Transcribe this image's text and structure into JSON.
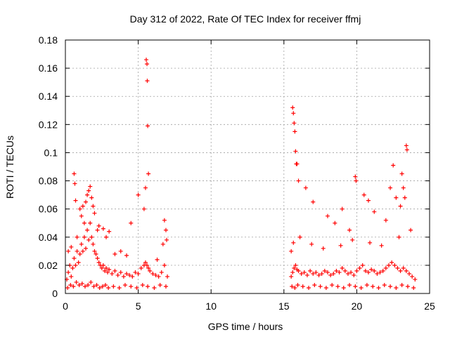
{
  "chart_data": {
    "type": "scatter",
    "title": "Day 312 of 2022, Rate Of TEC Index for receiver ffmj",
    "xlabel": "GPS time / hours",
    "ylabel": "ROTI / TECUs",
    "xlim": [
      0,
      25
    ],
    "ylim": [
      0,
      0.18
    ],
    "xticks": [
      0,
      5,
      10,
      15,
      20,
      25
    ],
    "yticks": [
      0,
      0.02,
      0.04,
      0.06,
      0.08,
      0.1,
      0.12,
      0.14,
      0.16,
      0.18
    ],
    "xtick_labels": [
      "0",
      "5",
      "10",
      "15",
      "20",
      "25"
    ],
    "ytick_labels": [
      "0",
      "0.02",
      "0.04",
      "0.06",
      "0.08",
      "0.1",
      "0.12",
      "0.14",
      "0.16",
      "0.18"
    ],
    "grid": true,
    "marker": "+",
    "color": "#ff0000",
    "series": [
      {
        "x": [
          0.1,
          0.2,
          0.3,
          0.4,
          0.5,
          0.6,
          0.7,
          0.8,
          0.9,
          1.0,
          1.1,
          1.2,
          1.3,
          1.4,
          1.5,
          1.6,
          1.7,
          1.8,
          1.9,
          2.0,
          2.1,
          2.2,
          2.3,
          2.4,
          2.5,
          2.6,
          2.7,
          2.8,
          2.9,
          3.0,
          3.2,
          3.4,
          3.6,
          3.8,
          4.0,
          4.2,
          4.4,
          4.6,
          4.8,
          5.0,
          5.2,
          5.4,
          5.5,
          5.6,
          5.7,
          5.8,
          6.0,
          6.2,
          6.4,
          6.6,
          6.8,
          7.0,
          0.15,
          0.35,
          0.55,
          0.75,
          0.95,
          1.15,
          1.35,
          1.55,
          1.75,
          1.95,
          2.15,
          2.35,
          2.55,
          2.75,
          2.95,
          3.3,
          3.7,
          4.1,
          4.5,
          4.9,
          5.3,
          5.65,
          6.1,
          6.5,
          6.9,
          0.6,
          0.65,
          0.7,
          1.0,
          1.2,
          1.4,
          1.5,
          1.6,
          1.7,
          1.8,
          1.9,
          2.0,
          2.3,
          2.6,
          3.0,
          3.8,
          4.5,
          5.5,
          5.55,
          5.6,
          5.62,
          5.65,
          5.7,
          6.8,
          6.9,
          0.2,
          0.4,
          0.8,
          1.1,
          1.3,
          2.2,
          2.8,
          3.4,
          4.2,
          5.0,
          5.4,
          6.3,
          6.7,
          6.95,
          15.5,
          15.6,
          15.7,
          15.8,
          15.9,
          16.0,
          16.2,
          16.4,
          16.6,
          16.8,
          17.0,
          17.2,
          17.4,
          17.6,
          17.8,
          18.0,
          18.2,
          18.4,
          18.6,
          18.8,
          19.0,
          19.2,
          19.4,
          19.6,
          19.8,
          20.0,
          20.2,
          20.4,
          20.6,
          20.8,
          21.0,
          21.2,
          21.4,
          21.6,
          21.8,
          22.0,
          22.2,
          22.4,
          22.6,
          22.8,
          23.0,
          23.2,
          23.4,
          23.6,
          23.8,
          24.0,
          15.55,
          15.75,
          15.95,
          16.3,
          16.7,
          17.1,
          17.5,
          17.9,
          18.3,
          18.7,
          19.1,
          19.5,
          19.9,
          20.3,
          20.7,
          21.1,
          21.5,
          21.9,
          22.3,
          22.7,
          23.1,
          23.5,
          23.9,
          15.6,
          15.65,
          15.7,
          15.75,
          15.8,
          15.85,
          15.9,
          16.0,
          16.5,
          17.0,
          18.0,
          18.5,
          19.0,
          19.5,
          19.9,
          19.95,
          20.5,
          20.8,
          21.2,
          22.0,
          22.3,
          22.5,
          22.7,
          23.0,
          23.1,
          23.2,
          23.3,
          23.4,
          23.45,
          15.5,
          15.65,
          16.1,
          16.9,
          17.7,
          18.9,
          19.7,
          20.9,
          21.7,
          22.9,
          23.7
        ],
        "y": [
          0.01,
          0.015,
          0.02,
          0.012,
          0.018,
          0.025,
          0.02,
          0.03,
          0.022,
          0.028,
          0.035,
          0.03,
          0.04,
          0.032,
          0.045,
          0.038,
          0.05,
          0.04,
          0.035,
          0.03,
          0.028,
          0.025,
          0.022,
          0.02,
          0.018,
          0.02,
          0.016,
          0.018,
          0.015,
          0.017,
          0.014,
          0.016,
          0.013,
          0.015,
          0.012,
          0.014,
          0.013,
          0.012,
          0.015,
          0.014,
          0.018,
          0.02,
          0.022,
          0.02,
          0.018,
          0.016,
          0.014,
          0.013,
          0.012,
          0.015,
          0.02,
          0.012,
          0.004,
          0.006,
          0.005,
          0.008,
          0.006,
          0.007,
          0.005,
          0.006,
          0.008,
          0.005,
          0.006,
          0.004,
          0.005,
          0.006,
          0.004,
          0.005,
          0.004,
          0.006,
          0.005,
          0.004,
          0.006,
          0.005,
          0.004,
          0.006,
          0.005,
          0.085,
          0.078,
          0.066,
          0.06,
          0.062,
          0.065,
          0.07,
          0.073,
          0.076,
          0.068,
          0.062,
          0.057,
          0.048,
          0.046,
          0.044,
          0.03,
          0.05,
          0.075,
          0.166,
          0.163,
          0.151,
          0.119,
          0.085,
          0.052,
          0.045,
          0.03,
          0.033,
          0.04,
          0.055,
          0.05,
          0.045,
          0.04,
          0.028,
          0.027,
          0.07,
          0.06,
          0.024,
          0.035,
          0.038,
          0.012,
          0.015,
          0.018,
          0.02,
          0.017,
          0.016,
          0.014,
          0.015,
          0.013,
          0.016,
          0.014,
          0.015,
          0.013,
          0.014,
          0.016,
          0.015,
          0.013,
          0.014,
          0.016,
          0.015,
          0.018,
          0.016,
          0.014,
          0.015,
          0.013,
          0.016,
          0.018,
          0.02,
          0.016,
          0.015,
          0.017,
          0.016,
          0.014,
          0.015,
          0.016,
          0.018,
          0.02,
          0.022,
          0.02,
          0.018,
          0.016,
          0.018,
          0.016,
          0.014,
          0.012,
          0.01,
          0.005,
          0.004,
          0.006,
          0.005,
          0.004,
          0.006,
          0.005,
          0.004,
          0.006,
          0.005,
          0.004,
          0.006,
          0.005,
          0.004,
          0.006,
          0.005,
          0.004,
          0.006,
          0.005,
          0.004,
          0.006,
          0.005,
          0.004,
          0.132,
          0.128,
          0.121,
          0.115,
          0.101,
          0.092,
          0.092,
          0.08,
          0.075,
          0.065,
          0.055,
          0.05,
          0.06,
          0.045,
          0.083,
          0.08,
          0.07,
          0.066,
          0.058,
          0.052,
          0.075,
          0.091,
          0.068,
          0.062,
          0.085,
          0.075,
          0.068,
          0.105,
          0.102,
          0.03,
          0.036,
          0.04,
          0.035,
          0.032,
          0.034,
          0.038,
          0.036,
          0.034,
          0.04,
          0.045
        ]
      }
    ]
  }
}
